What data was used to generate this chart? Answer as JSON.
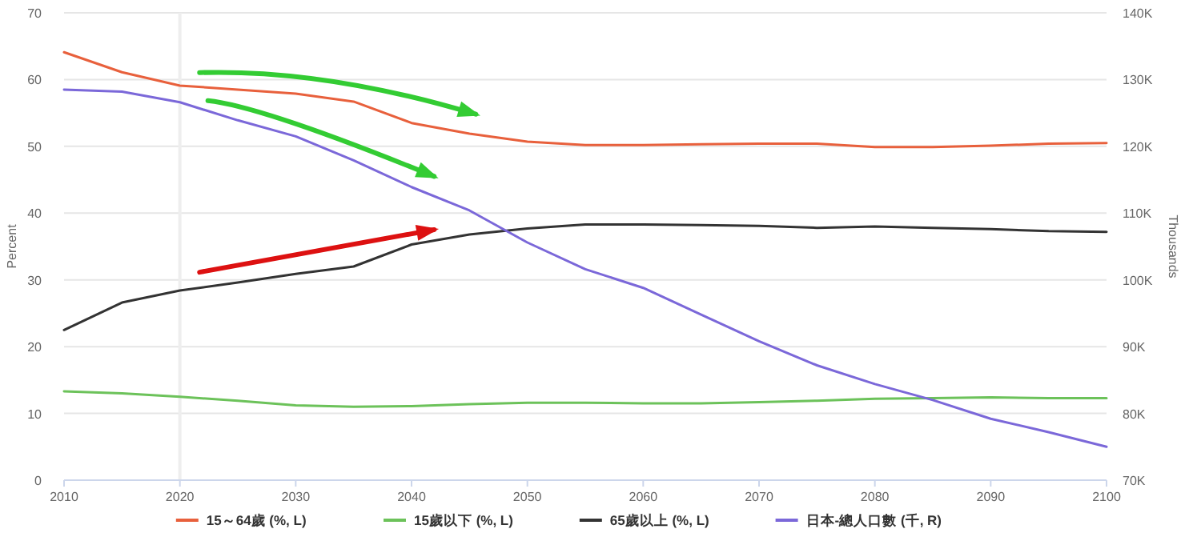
{
  "chart_data": {
    "type": "line",
    "ylabel": "Percent",
    "y2label": "Thousands",
    "x": [
      2010,
      2015,
      2020,
      2025,
      2030,
      2035,
      2040,
      2045,
      2050,
      2055,
      2060,
      2065,
      2070,
      2075,
      2080,
      2085,
      2090,
      2095,
      2100
    ],
    "series": [
      {
        "name": "15～64歲 (%, L)",
        "color": "#e8603c",
        "axis": "y",
        "values": [
          64.1,
          61.1,
          59.1,
          58.5,
          57.9,
          56.7,
          53.5,
          51.9,
          50.7,
          50.2,
          50.2,
          50.3,
          50.4,
          50.4,
          49.9,
          49.9,
          50.1,
          50.4,
          50.5
        ]
      },
      {
        "name": "15歲以下 (%, L)",
        "color": "#6cc25a",
        "axis": "y",
        "values": [
          13.3,
          13.0,
          12.5,
          11.9,
          11.2,
          11.0,
          11.1,
          11.4,
          11.6,
          11.6,
          11.5,
          11.5,
          11.7,
          11.9,
          12.2,
          12.3,
          12.4,
          12.3,
          12.3
        ]
      },
      {
        "name": "65歲以上 (%, L)",
        "color": "#333333",
        "axis": "y",
        "values": [
          22.5,
          26.6,
          28.4,
          29.6,
          30.9,
          32.0,
          35.3,
          36.8,
          37.7,
          38.3,
          38.3,
          38.2,
          38.1,
          37.8,
          38.0,
          37.8,
          37.6,
          37.3,
          37.2
        ]
      },
      {
        "name": "日本-總人口數 (千, R)",
        "color": "#7b68d9",
        "axis": "y2",
        "values": [
          128500,
          128200,
          126600,
          123900,
          121500,
          117900,
          113900,
          110400,
          105600,
          101600,
          98800,
          94800,
          90800,
          87200,
          84400,
          82000,
          79200,
          77200,
          75000
        ]
      }
    ],
    "xlim": [
      2010,
      2100
    ],
    "xticks": [
      2010,
      2020,
      2030,
      2040,
      2050,
      2060,
      2070,
      2080,
      2090,
      2100
    ],
    "ylim": [
      0,
      70
    ],
    "yticks": [
      0,
      10,
      20,
      30,
      40,
      50,
      60,
      70
    ],
    "y2lim": [
      70000,
      140000
    ],
    "y2ticks": [
      {
        "value": 70000,
        "label": "70K"
      },
      {
        "value": 80000,
        "label": "80K"
      },
      {
        "value": 90000,
        "label": "90K"
      },
      {
        "value": 100000,
        "label": "100K"
      },
      {
        "value": 110000,
        "label": "110K"
      },
      {
        "value": 120000,
        "label": "120K"
      },
      {
        "value": 130000,
        "label": "130K"
      },
      {
        "value": 140000,
        "label": "140K"
      }
    ],
    "ref_lines": [
      {
        "axis": "x",
        "value": 2020,
        "color": "#eeeeee"
      }
    ],
    "grid": "y",
    "legend": "bottom"
  }
}
